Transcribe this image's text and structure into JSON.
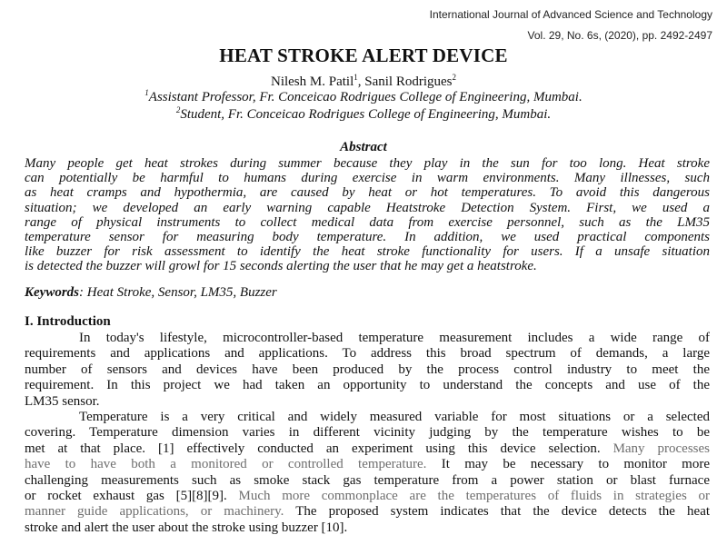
{
  "journal": {
    "name": "International Journal of Advanced Science and Technology",
    "issue": "Vol. 29, No. 6s, (2020), pp. 2492-2497"
  },
  "title": "HEAT STROKE ALERT DEVICE",
  "authors": {
    "author1": "Nilesh M. Patil",
    "author1_sup": "1",
    "separator": ", ",
    "author2": "Sanil Rodrigues",
    "author2_sup": "2"
  },
  "affiliations": [
    {
      "sup": "1",
      "text": "Assistant Professor, Fr. Conceicao Rodrigues College of Engineering, Mumbai."
    },
    {
      "sup": "2",
      "text": "Student, Fr. Conceicao Rodrigues College of Engineering, Mumbai."
    }
  ],
  "abstract": {
    "heading": "Abstract",
    "lines": [
      "Many people get heat strokes during summer because they play in the sun for too long. Heat stroke",
      "can potentially be harmful to humans during exercise in warm environments. Many illnesses, such",
      "as heat cramps and hypothermia, are caused by heat or hot temperatures. To avoid this dangerous",
      "situation; we developed an early warning capable Heatstroke Detection System. First, we used a",
      "range of physical instruments to collect medical data from exercise personnel, such as the LM35",
      "temperature sensor for measuring body temperature. In addition, we used practical components",
      "like buzzer for risk assessment to identify the heat stroke functionality for users. If a unsafe situation",
      "is detected the buzzer will growl for 15 seconds alerting the user that he may get a heatstroke."
    ]
  },
  "keywords": {
    "label": "Keywords",
    "text": ": Heat Stroke, Sensor, LM35, Buzzer"
  },
  "intro": {
    "number": "I",
    "title": ". Introduction",
    "p1_lines": [
      "In today's lifestyle, microcontroller-based temperature measurement includes a wide range of",
      "requirements and applications and applications. To address this broad spectrum of demands, a large",
      "number of sensors and devices have been produced by the process control industry to meet the",
      "requirement. In this project we had taken an opportunity to understand the concepts and use of the",
      "LM35 sensor."
    ],
    "p2": {
      "l1": "Temperature is a very critical and widely measured variable for most situations or a selected",
      "l2": "covering. Temperature dimension varies in different vicinity judging by the temperature wishes to be",
      "l3": "met at that place. [1] effectively conducted an experiment using this device selection.",
      "l3_gray": "Many processes",
      "l4_gray": "have to have both a monitored or controlled temperature.",
      "l4": "It may be necessary to monitor more",
      "l5": "challenging measurements such as smoke stack gas temperature from a power station or blast furnace",
      "l6": "or rocket exhaust gas [5][8][9].",
      "l6_gray": "Much more commonplace are the temperatures of fluids in strategies or",
      "l7_gray": "manner guide applications, or machinery.",
      "l7": "The proposed system indicates that the device detects the heat",
      "l8": "stroke and alert the user about the stroke using buzzer [10]."
    }
  }
}
